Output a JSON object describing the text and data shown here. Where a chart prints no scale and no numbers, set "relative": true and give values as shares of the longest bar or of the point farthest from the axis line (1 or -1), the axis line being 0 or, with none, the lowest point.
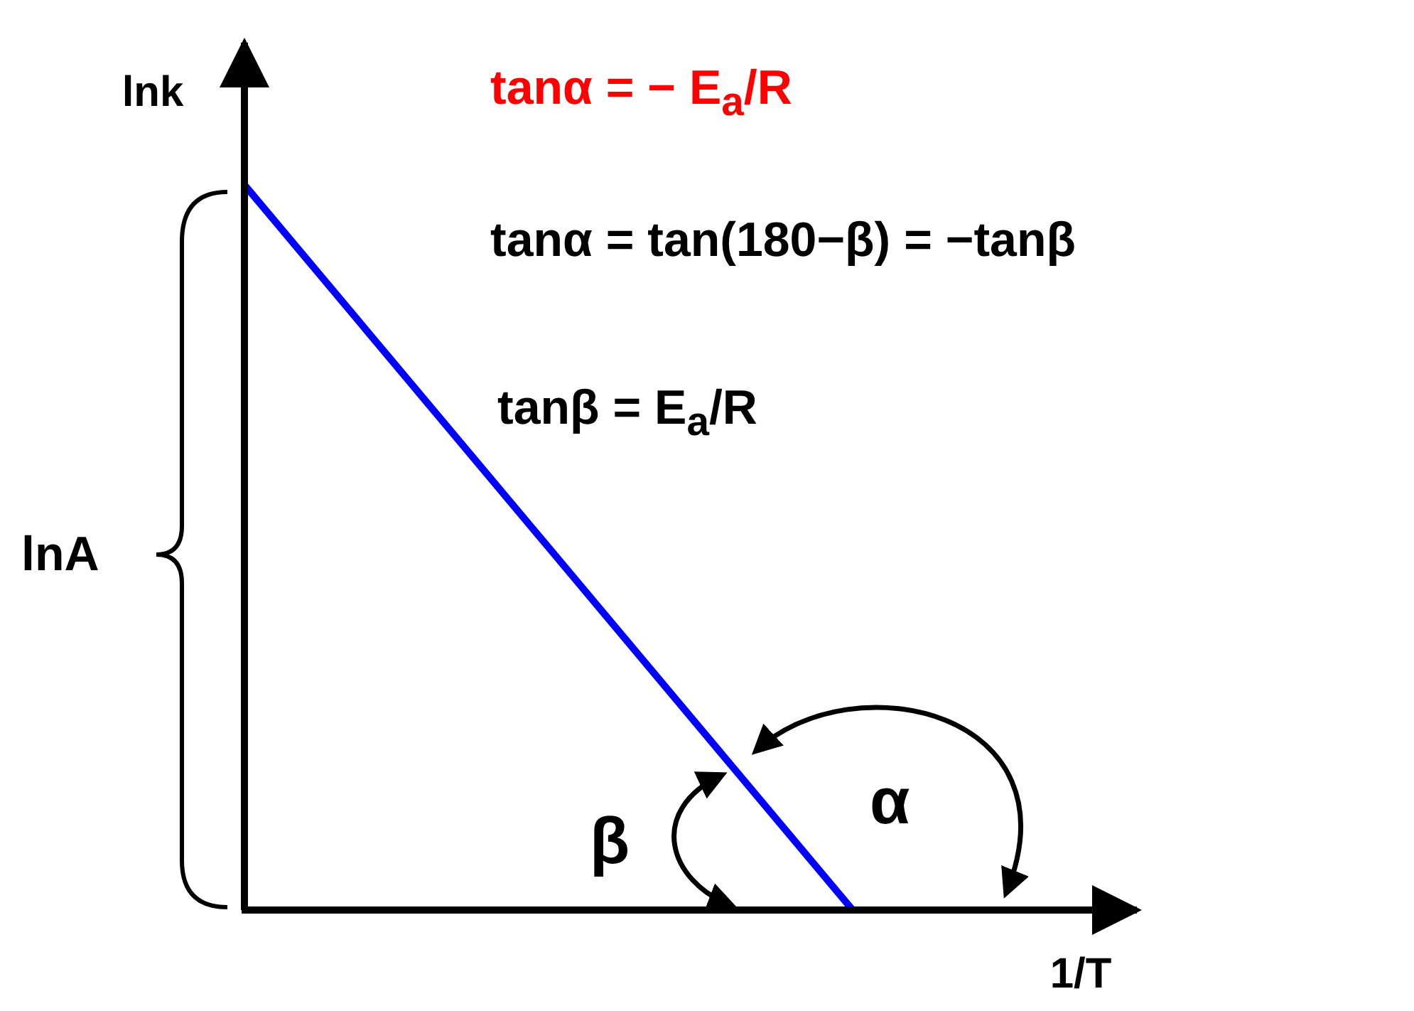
{
  "chart_data": {
    "type": "line",
    "relative": true,
    "tick_labels": false,
    "xlabel": "1/T",
    "ylabel": "lnk",
    "categories": [
      null,
      null
    ],
    "series": [
      {
        "color": "#0000ff",
        "values": [
          1,
          0
        ]
      }
    ],
    "annotations": [
      "tanα = − E$_{a}$/R",
      "tanα = tan(180−β) = −tanβ",
      "tanβ = E$_{a}$/R",
      "lnA",
      "α",
      "β"
    ]
  }
}
